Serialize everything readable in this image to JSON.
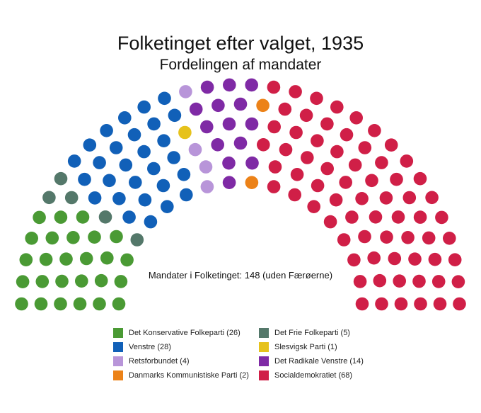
{
  "chart_data": {
    "type": "parliament",
    "title": "Folketinget efter valget, 1935",
    "subtitle": "Fordelingen af mandater",
    "total_label": "Mandater i Folketinget: 148 (uden Færøerne)",
    "total": 148,
    "rows": 6,
    "seat_sequence": [
      {
        "party": "Det Konservative Folkeparti",
        "seats": 26
      },
      {
        "party": "Det Frie Folkeparti",
        "seats": 5
      },
      {
        "party": "Venstre",
        "seats": 28
      },
      {
        "party": "Slesvigsk Parti",
        "seats": 1
      },
      {
        "party": "Retsforbundet",
        "seats": 4
      },
      {
        "party": "Det Radikale Venstre",
        "seats": 14
      },
      {
        "party": "Danmarks Kommunistiske Parti",
        "seats": 2
      },
      {
        "party": "Socialdemokratiet",
        "seats": 68
      }
    ],
    "colors": {
      "Det Konservative Folkeparti": "#4a9a34",
      "Det Frie Folkeparti": "#54786a",
      "Venstre": "#1160b8",
      "Slesvigsk Parti": "#e6c21c",
      "Retsforbundet": "#b895d9",
      "Det Radikale Venstre": "#7f2aa5",
      "Danmarks Kommunistiske Parti": "#ec8218",
      "Socialdemokratiet": "#d01f47"
    },
    "legend": [
      {
        "label": "Det Konservative Folkeparti (26)",
        "color": "#4a9a34"
      },
      {
        "label": "Det Frie Folkeparti (5)",
        "color": "#54786a"
      },
      {
        "label": "Venstre (28)",
        "color": "#1160b8"
      },
      {
        "label": "Slesvigsk Parti (1)",
        "color": "#e6c21c"
      },
      {
        "label": "Retsforbundet (4)",
        "color": "#b895d9"
      },
      {
        "label": "Det Radikale Venstre (14)",
        "color": "#7f2aa5"
      },
      {
        "label": "Danmarks Kommunistiske Parti (2)",
        "color": "#ec8218"
      },
      {
        "label": "Socialdemokratiet (68)",
        "color": "#d01f47"
      }
    ]
  }
}
